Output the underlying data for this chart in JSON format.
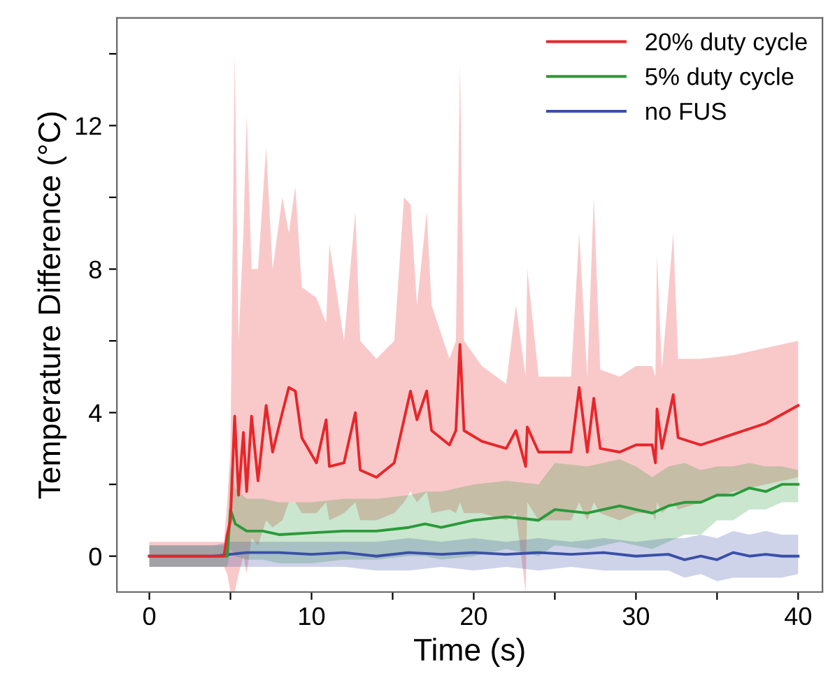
{
  "chart_data": {
    "type": "line",
    "xlabel": "Time (s)",
    "ylabel": "Temperature Difference (°C)",
    "xlim": [
      -2,
      41.5
    ],
    "ylim": [
      -1,
      15
    ],
    "xticks": [
      0,
      {
        "value": 5,
        "label": null
      },
      10,
      {
        "value": 15,
        "label": null
      },
      20,
      {
        "value": 25,
        "label": null
      },
      30,
      {
        "value": 35,
        "label": null
      },
      40
    ],
    "yticks": [
      0,
      {
        "value": 2,
        "label": null
      },
      4,
      {
        "value": 6,
        "label": null
      },
      8,
      {
        "value": 10,
        "label": null
      },
      12,
      {
        "value": 14,
        "label": null
      }
    ],
    "grid": false,
    "legend": "top right",
    "marker": "none",
    "line_style": "solid",
    "series": [
      {
        "name": "20% duty cycle",
        "color": "#e8262a",
        "x": [
          0,
          1,
          2,
          3,
          4,
          4.6,
          4.8,
          5.0,
          5.26,
          5.5,
          5.8,
          6.0,
          6.3,
          6.7,
          7.2,
          7.6,
          8.2,
          8.6,
          9.0,
          9.4,
          10.3,
          10.9,
          11.1,
          12.0,
          12.7,
          13.0,
          14.0,
          15.1,
          15.7,
          16.1,
          16.5,
          17.1,
          17.4,
          18.5,
          18.9,
          19.15,
          19.4,
          20.5,
          22,
          22.6,
          23.2,
          23.3,
          24,
          26,
          26.5,
          27,
          27.4,
          27.8,
          29,
          30,
          31,
          31.2,
          31.3,
          31.6,
          32.3,
          32.6,
          34,
          36,
          38,
          40
        ],
        "values": [
          0,
          0,
          0,
          0,
          0,
          0,
          0.6,
          1.0,
          3.9,
          1.7,
          3.45,
          1.8,
          3.9,
          2.1,
          4.2,
          2.9,
          4.0,
          4.7,
          4.6,
          3.3,
          2.6,
          3.8,
          2.5,
          2.6,
          4.0,
          2.4,
          2.2,
          2.6,
          3.8,
          4.6,
          3.8,
          4.6,
          3.5,
          3.1,
          3.5,
          5.9,
          3.5,
          3.2,
          3.0,
          3.5,
          2.5,
          3.6,
          2.9,
          2.9,
          4.7,
          2.9,
          4.4,
          3.0,
          2.9,
          3.1,
          3.1,
          2.6,
          4.1,
          3.0,
          4.5,
          3.3,
          3.1,
          3.4,
          3.7,
          4.2
        ],
        "upper": [
          0.4,
          0.4,
          0.4,
          0.4,
          0.4,
          0.4,
          1.5,
          3.0,
          14.0,
          6.0,
          9.0,
          12.3,
          8.0,
          8.0,
          11.4,
          8.0,
          10.0,
          9.0,
          10.3,
          7.5,
          7.2,
          6.5,
          8.7,
          6.0,
          9.6,
          6.0,
          5.5,
          6.0,
          10.0,
          9.8,
          7.0,
          9.6,
          7.0,
          5.5,
          6.0,
          13.7,
          6.0,
          5.3,
          4.8,
          7.0,
          5.0,
          8.0,
          5.0,
          5.0,
          9.0,
          5.0,
          10.0,
          5.2,
          5.0,
          5.3,
          5.3,
          5.0,
          8.4,
          5.2,
          9.0,
          5.5,
          5.5,
          5.6,
          5.8,
          6.0
        ],
        "lower": [
          -0.3,
          -0.3,
          -0.3,
          -0.3,
          -0.3,
          -0.3,
          -0.5,
          -1.0,
          -1.0,
          -0.5,
          0,
          -0.5,
          0.5,
          0.3,
          1.0,
          0.8,
          1.0,
          1.5,
          1.5,
          1.2,
          1.2,
          1.5,
          1.0,
          1.2,
          1.5,
          1.0,
          1.0,
          1.2,
          1.5,
          1.8,
          1.5,
          1.8,
          1.2,
          1.3,
          1.2,
          1.5,
          1.2,
          1.2,
          1.0,
          1.2,
          -1.0,
          1.5,
          1.0,
          1.0,
          1.5,
          1.0,
          1.5,
          1.2,
          1.0,
          1.2,
          1.2,
          1.0,
          1.5,
          1.2,
          1.5,
          1.3,
          1.5,
          1.8,
          2.0,
          2.2
        ]
      },
      {
        "name": "5% duty cycle",
        "color": "#2a9a3a",
        "x": [
          0,
          2,
          4,
          4.8,
          5.0,
          5.3,
          6,
          7,
          8,
          10,
          12,
          14,
          16,
          17,
          18,
          20,
          22,
          24,
          25,
          27,
          29,
          30,
          31,
          32,
          33,
          34,
          35,
          36,
          37,
          38,
          39,
          40
        ],
        "values": [
          null,
          null,
          0,
          0,
          1.3,
          0.9,
          0.7,
          0.7,
          0.6,
          0.65,
          0.7,
          0.7,
          0.8,
          0.9,
          0.8,
          1.0,
          1.1,
          1.0,
          1.3,
          1.2,
          1.4,
          1.3,
          1.2,
          1.4,
          1.5,
          1.5,
          1.7,
          1.7,
          1.9,
          1.8,
          2.0,
          2.0
        ],
        "upper": [
          0.3,
          0.3,
          0.3,
          0.3,
          2.5,
          1.9,
          1.6,
          1.6,
          1.5,
          1.5,
          1.6,
          1.6,
          1.7,
          1.8,
          1.8,
          2.0,
          2.1,
          2.0,
          2.6,
          2.5,
          2.7,
          2.5,
          2.2,
          2.5,
          2.6,
          2.4,
          2.5,
          2.5,
          2.6,
          2.5,
          2.5,
          2.4
        ],
        "lower": [
          -0.3,
          -0.3,
          -0.3,
          -0.3,
          0.2,
          0.0,
          -0.1,
          -0.1,
          -0.2,
          -0.2,
          -0.1,
          -0.1,
          0.0,
          0.0,
          -0.1,
          0.0,
          0.2,
          0.0,
          0.3,
          0.2,
          0.4,
          0.3,
          0.2,
          0.4,
          0.6,
          0.6,
          1.0,
          1.0,
          1.3,
          1.3,
          1.5,
          1.5
        ]
      },
      {
        "name": "no FUS",
        "color": "#3a4fa8",
        "x": [
          0,
          2,
          4,
          5,
          6,
          8,
          10,
          12,
          14,
          16,
          18,
          20,
          22,
          24,
          26,
          28,
          30,
          32,
          33,
          34,
          35,
          36,
          37,
          38,
          39,
          40
        ],
        "values": [
          0,
          0,
          0,
          0.05,
          0.1,
          0.1,
          0.05,
          0.1,
          0,
          0.1,
          0.05,
          0.1,
          0.05,
          0.1,
          0.05,
          0.1,
          0,
          0.05,
          -0.1,
          0,
          -0.1,
          0.1,
          0,
          0.05,
          0,
          0
        ],
        "upper": [
          0.3,
          0.3,
          0.3,
          0.4,
          0.4,
          0.4,
          0.4,
          0.4,
          0.4,
          0.5,
          0.4,
          0.5,
          0.4,
          0.5,
          0.4,
          0.5,
          0.4,
          0.5,
          0.5,
          0.6,
          0.5,
          0.7,
          0.6,
          0.7,
          0.6,
          0.6
        ],
        "lower": [
          -0.3,
          -0.3,
          -0.3,
          -0.3,
          -0.3,
          -0.3,
          -0.3,
          -0.3,
          -0.4,
          -0.4,
          -0.3,
          -0.4,
          -0.3,
          -0.4,
          -0.3,
          -0.4,
          -0.4,
          -0.4,
          -0.6,
          -0.5,
          -0.7,
          -0.6,
          -0.6,
          -0.6,
          -0.6,
          -0.5
        ]
      }
    ]
  }
}
